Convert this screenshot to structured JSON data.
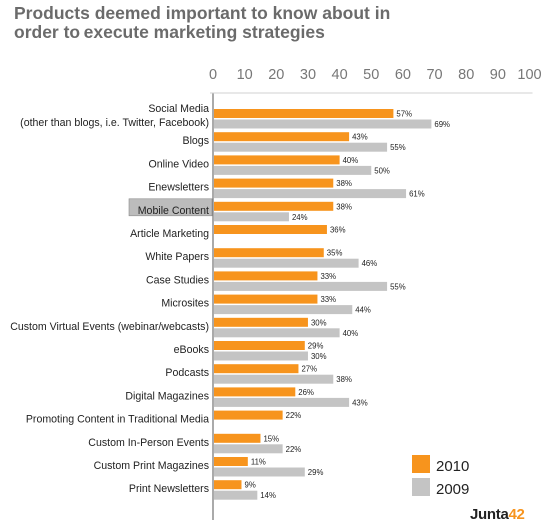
{
  "title_line1": "Products deemed important to know about in",
  "title_line2": "order to execute marketing strategies",
  "logo": {
    "text_main": "Junta",
    "text_accent": "42"
  },
  "colors": {
    "2010": "#f7941d",
    "2009": "#c4c4c4",
    "highlight_box": "#bcbcbc",
    "axis_text": "#777777"
  },
  "chart_data": {
    "type": "bar",
    "orientation": "horizontal",
    "xlim": [
      0,
      100
    ],
    "xticks": [
      0,
      10,
      20,
      30,
      40,
      50,
      60,
      70,
      80,
      90,
      100
    ],
    "categories": [
      [
        "Social Media",
        "(other than blogs, i.e. Twitter, Facebook)"
      ],
      [
        "Blogs"
      ],
      [
        "Online Video"
      ],
      [
        "Enewsletters"
      ],
      [
        "Mobile Content"
      ],
      [
        "Article Marketing"
      ],
      [
        "White Papers"
      ],
      [
        "Case Studies"
      ],
      [
        "Microsites"
      ],
      [
        "Custom Virtual Events (webinar/webcasts)"
      ],
      [
        "eBooks"
      ],
      [
        "Podcasts"
      ],
      [
        "Digital Magazines"
      ],
      [
        "Promoting Content in Traditional Media"
      ],
      [
        "Custom In-Person Events"
      ],
      [
        "Custom Print Magazines"
      ],
      [
        "Print Newsletters"
      ]
    ],
    "highlighted_category": "Mobile Content",
    "series": [
      {
        "name": "2010",
        "values": [
          57,
          43,
          40,
          38,
          38,
          36,
          35,
          33,
          33,
          30,
          29,
          27,
          26,
          22,
          15,
          11,
          9
        ]
      },
      {
        "name": "2009",
        "values": [
          69,
          55,
          50,
          61,
          24,
          null,
          46,
          55,
          44,
          40,
          30,
          38,
          43,
          null,
          22,
          29,
          14
        ]
      }
    ],
    "value_suffix": "%",
    "legend": {
      "position": "bottom-right",
      "entries": [
        "2010",
        "2009"
      ]
    }
  }
}
